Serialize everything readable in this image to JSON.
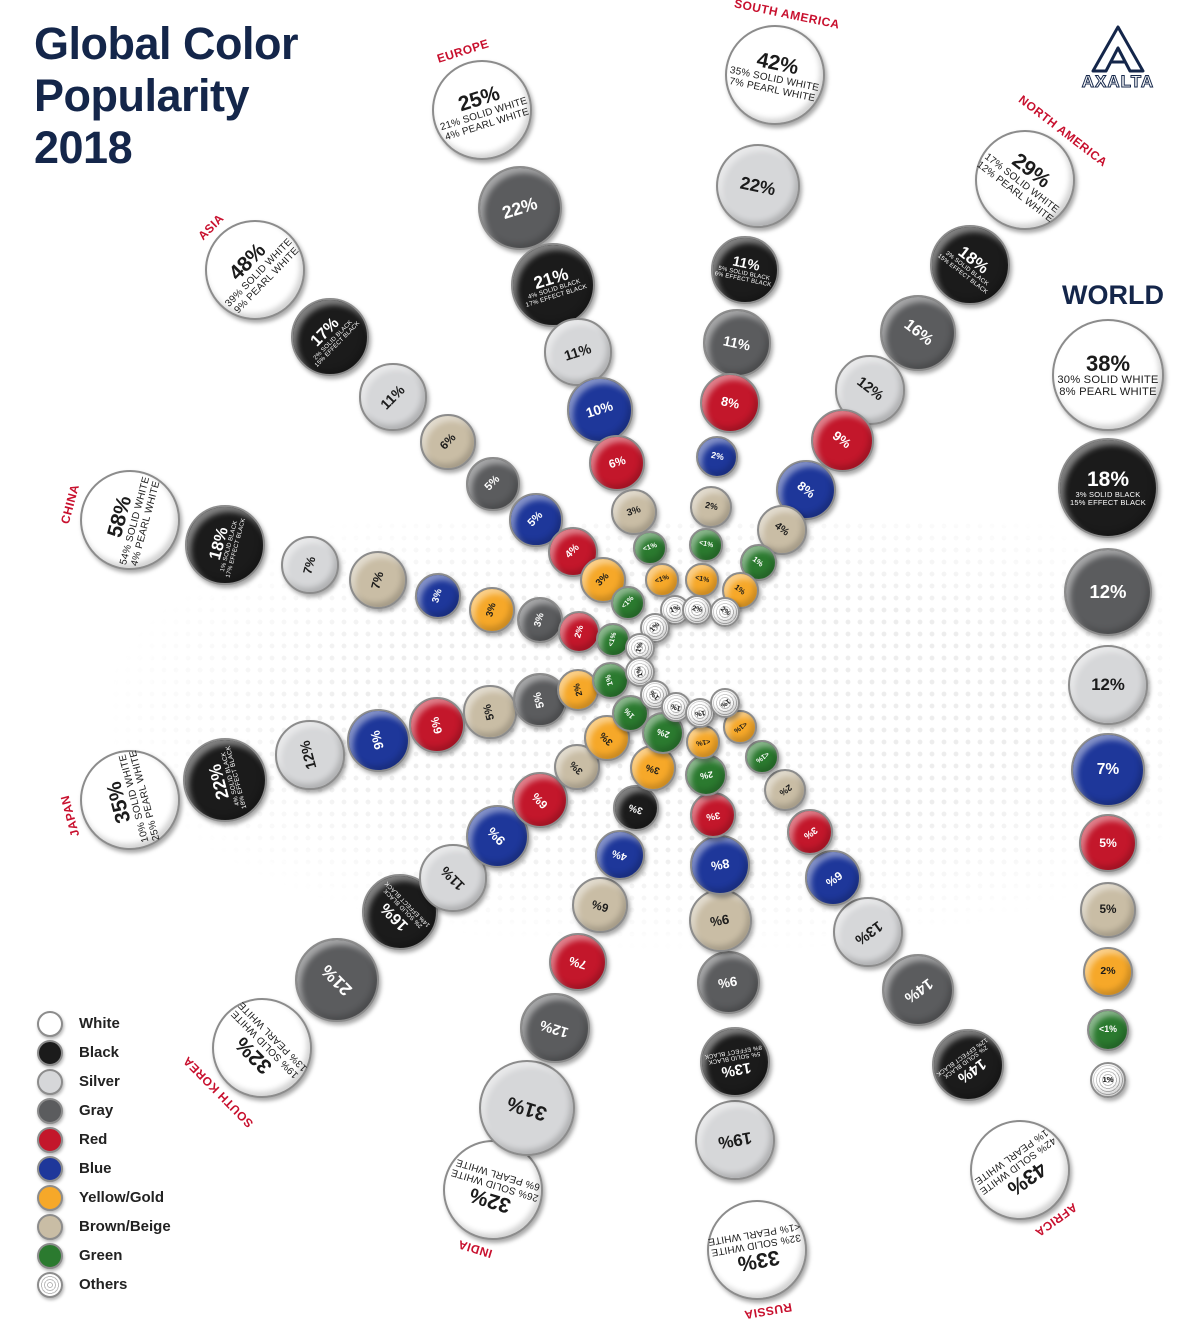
{
  "title": [
    "Global Color",
    "Popularity",
    "2018"
  ],
  "brand": "AXALTA",
  "colors": {
    "White": "#ffffff",
    "Black": "#1b1b1b",
    "Silver": "#d6d7d9",
    "Gray": "#5b5c5e",
    "Red": "#c3172b",
    "Blue": "#1e379a",
    "Yellow/Gold": "#f6a829",
    "Brown/Beige": "#c9bda5",
    "Green": "#2b7a2f",
    "Others": "#f2f2f2"
  },
  "legend": [
    "White",
    "Black",
    "Silver",
    "Gray",
    "Red",
    "Blue",
    "Yellow/Gold",
    "Brown/Beige",
    "Green",
    "Others"
  ],
  "chart_data": {
    "type": "bubble-infographic",
    "title": "Global Color Popularity 2018",
    "unit": "percent of vehicles",
    "regions": [
      {
        "name": "EUROPE",
        "items": [
          {
            "color": "White",
            "value": "25%",
            "detail": [
              "21% SOLID WHITE",
              "4% PEARL WHITE"
            ]
          },
          {
            "color": "Gray",
            "value": "22%"
          },
          {
            "color": "Black",
            "value": "21%",
            "detail": [
              "4% SOLID BLACK",
              "17% EFFECT BLACK"
            ]
          },
          {
            "color": "Silver",
            "value": "11%"
          },
          {
            "color": "Blue",
            "value": "10%"
          },
          {
            "color": "Red",
            "value": "6%"
          },
          {
            "color": "Brown/Beige",
            "value": "3%"
          },
          {
            "color": "Green",
            "value": "<1%"
          },
          {
            "color": "Yellow/Gold",
            "value": "<1%"
          },
          {
            "color": "Others",
            "value": "1%"
          }
        ]
      },
      {
        "name": "SOUTH AMERICA",
        "items": [
          {
            "color": "White",
            "value": "42%",
            "detail": [
              "35% SOLID WHITE",
              "7% PEARL WHITE"
            ]
          },
          {
            "color": "Silver",
            "value": "22%"
          },
          {
            "color": "Black",
            "value": "11%",
            "detail": [
              "5% SOLID BLACK",
              "6% EFFECT BLACK"
            ]
          },
          {
            "color": "Gray",
            "value": "11%"
          },
          {
            "color": "Red",
            "value": "8%"
          },
          {
            "color": "Blue",
            "value": "2%"
          },
          {
            "color": "Brown/Beige",
            "value": "2%"
          },
          {
            "color": "Green",
            "value": "<1%"
          },
          {
            "color": "Yellow/Gold",
            "value": "<1%"
          },
          {
            "color": "Others",
            "value": "2%"
          }
        ]
      },
      {
        "name": "NORTH AMERICA",
        "items": [
          {
            "color": "White",
            "value": "29%",
            "detail": [
              "17% SOLID WHITE",
              "12% PEARL WHITE"
            ]
          },
          {
            "color": "Black",
            "value": "18%",
            "detail": [
              "3% SOLID BLACK",
              "15% EFFECT BLACK"
            ]
          },
          {
            "color": "Gray",
            "value": "16%"
          },
          {
            "color": "Silver",
            "value": "12%"
          },
          {
            "color": "Red",
            "value": "9%"
          },
          {
            "color": "Blue",
            "value": "8%"
          },
          {
            "color": "Brown/Beige",
            "value": "4%"
          },
          {
            "color": "Green",
            "value": "1%"
          },
          {
            "color": "Yellow/Gold",
            "value": "1%"
          },
          {
            "color": "Others",
            "value": "2%"
          }
        ]
      },
      {
        "name": "ASIA",
        "items": [
          {
            "color": "White",
            "value": "48%",
            "detail": [
              "39% SOLID WHITE",
              "9% PEARL WHITE"
            ]
          },
          {
            "color": "Black",
            "value": "17%",
            "detail": [
              "2% SOLID BLACK",
              "15% EFFECT BLACK"
            ]
          },
          {
            "color": "Silver",
            "value": "11%"
          },
          {
            "color": "Brown/Beige",
            "value": "6%"
          },
          {
            "color": "Gray",
            "value": "5%"
          },
          {
            "color": "Blue",
            "value": "5%"
          },
          {
            "color": "Red",
            "value": "4%"
          },
          {
            "color": "Yellow/Gold",
            "value": "3%"
          },
          {
            "color": "Green",
            "value": "<1%"
          },
          {
            "color": "Others",
            "value": "1%"
          }
        ]
      },
      {
        "name": "CHINA",
        "items": [
          {
            "color": "White",
            "value": "58%",
            "detail": [
              "54% SOLID WHITE",
              "4% PEARL WHITE"
            ]
          },
          {
            "color": "Black",
            "value": "18%",
            "detail": [
              "1% SOLID BLACK",
              "17% EFFECT BLACK"
            ]
          },
          {
            "color": "Silver",
            "value": "7%"
          },
          {
            "color": "Brown/Beige",
            "value": "7%"
          },
          {
            "color": "Blue",
            "value": "3%"
          },
          {
            "color": "Yellow/Gold",
            "value": "3%"
          },
          {
            "color": "Gray",
            "value": "3%"
          },
          {
            "color": "Red",
            "value": "2%"
          },
          {
            "color": "Green",
            "value": "<1%"
          },
          {
            "color": "Others",
            "value": "1%"
          }
        ]
      },
      {
        "name": "JAPAN",
        "items": [
          {
            "color": "White",
            "value": "35%",
            "detail": [
              "10% SOLID WHITE",
              "25% PEARL WHITE"
            ]
          },
          {
            "color": "Black",
            "value": "22%",
            "detail": [
              "4% SOLID BLACK",
              "18% EFFECT BLACK"
            ]
          },
          {
            "color": "Silver",
            "value": "12%"
          },
          {
            "color": "Blue",
            "value": "9%"
          },
          {
            "color": "Red",
            "value": "6%"
          },
          {
            "color": "Brown/Beige",
            "value": "5%"
          },
          {
            "color": "Gray",
            "value": "5%"
          },
          {
            "color": "Yellow/Gold",
            "value": "2%"
          },
          {
            "color": "Green",
            "value": "1%"
          },
          {
            "color": "Others",
            "value": "1%"
          }
        ]
      },
      {
        "name": "SOUTH KOREA",
        "items": [
          {
            "color": "White",
            "value": "32%",
            "detail": [
              "19% SOLID WHITE",
              "13% PEARL WHITE"
            ]
          },
          {
            "color": "Gray",
            "value": "21%"
          },
          {
            "color": "Black",
            "value": "16%",
            "detail": [
              "2% SOLID BLACK",
              "14% EFFECT BLACK"
            ]
          },
          {
            "color": "Silver",
            "value": "11%"
          },
          {
            "color": "Blue",
            "value": "9%"
          },
          {
            "color": "Red",
            "value": "6%"
          },
          {
            "color": "Brown/Beige",
            "value": "3%"
          },
          {
            "color": "Yellow/Gold",
            "value": "3%"
          },
          {
            "color": "Green",
            "value": "1%"
          },
          {
            "color": "Others",
            "value": "1%"
          }
        ]
      },
      {
        "name": "INDIA",
        "items": [
          {
            "color": "White",
            "value": "32%",
            "detail": [
              "26% SOLID WHITE",
              "6% PEARL WHITE"
            ]
          },
          {
            "color": "Silver",
            "value": "31%"
          },
          {
            "color": "Gray",
            "value": "12%"
          },
          {
            "color": "Red",
            "value": "7%"
          },
          {
            "color": "Brown/Beige",
            "value": "6%"
          },
          {
            "color": "Blue",
            "value": "4%"
          },
          {
            "color": "Black",
            "value": "3%"
          },
          {
            "color": "Yellow/Gold",
            "value": "3%"
          },
          {
            "color": "Green",
            "value": "2%"
          },
          {
            "color": "Others",
            "value": "1%"
          }
        ]
      },
      {
        "name": "RUSSIA",
        "items": [
          {
            "color": "White",
            "value": "33%",
            "detail": [
              "32% SOLID WHITE",
              "<1% PEARL WHITE"
            ]
          },
          {
            "color": "Silver",
            "value": "19%"
          },
          {
            "color": "Black",
            "value": "13%",
            "detail": [
              "5% SOLID BLACK",
              "8% EFFECT BLACK"
            ]
          },
          {
            "color": "Gray",
            "value": "9%"
          },
          {
            "color": "Brown/Beige",
            "value": "9%"
          },
          {
            "color": "Blue",
            "value": "8%"
          },
          {
            "color": "Red",
            "value": "3%"
          },
          {
            "color": "Green",
            "value": "2%"
          },
          {
            "color": "Yellow/Gold",
            "value": "<1%"
          },
          {
            "color": "Others",
            "value": "1%"
          }
        ]
      },
      {
        "name": "AFRICA",
        "items": [
          {
            "color": "White",
            "value": "43%",
            "detail": [
              "42% SOLID WHITE",
              "1% PEARL WHITE"
            ]
          },
          {
            "color": "Black",
            "value": "14%",
            "detail": [
              "2% SOLID BLACK",
              "12% EFFECT BLACK"
            ]
          },
          {
            "color": "Gray",
            "value": "14%"
          },
          {
            "color": "Silver",
            "value": "13%"
          },
          {
            "color": "Blue",
            "value": "6%"
          },
          {
            "color": "Red",
            "value": "3%"
          },
          {
            "color": "Brown/Beige",
            "value": "2%"
          },
          {
            "color": "Green",
            "value": "<1%"
          },
          {
            "color": "Yellow/Gold",
            "value": "<1%"
          },
          {
            "color": "Others",
            "value": "1%"
          }
        ]
      }
    ],
    "world": {
      "name": "WORLD",
      "items": [
        {
          "color": "White",
          "value": "38%",
          "detail": [
            "30% SOLID WHITE",
            "8% PEARL WHITE"
          ]
        },
        {
          "color": "Black",
          "value": "18%",
          "detail": [
            "3% SOLID BLACK",
            "15% EFFECT BLACK"
          ]
        },
        {
          "color": "Gray",
          "value": "12%"
        },
        {
          "color": "Silver",
          "value": "12%"
        },
        {
          "color": "Blue",
          "value": "7%"
        },
        {
          "color": "Red",
          "value": "5%"
        },
        {
          "color": "Brown/Beige",
          "value": "5%"
        },
        {
          "color": "Yellow/Gold",
          "value": "2%"
        },
        {
          "color": "Green",
          "value": "<1%"
        },
        {
          "color": "Others",
          "value": "1%"
        }
      ]
    }
  }
}
